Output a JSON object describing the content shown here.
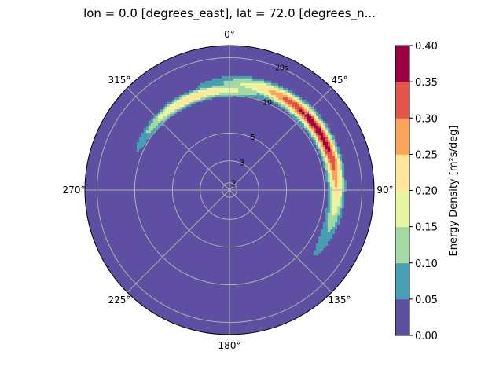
{
  "chart_data": {
    "type": "polar_filled_contour",
    "title": "lon = 0.0 [degrees_east], lat = 72.0 [degrees_n...",
    "angular_axis": {
      "zero_location": "top",
      "direction": "clockwise",
      "tick_labels": [
        {
          "deg": 0,
          "label": "0°"
        },
        {
          "deg": 45,
          "label": "45°"
        },
        {
          "deg": 90,
          "label": "90°"
        },
        {
          "deg": 135,
          "label": "135°"
        },
        {
          "deg": 180,
          "label": "180°"
        },
        {
          "deg": 225,
          "label": "225°"
        },
        {
          "deg": 270,
          "label": "270°"
        },
        {
          "deg": 315,
          "label": "315°"
        }
      ]
    },
    "radial_axis": {
      "scale": "log",
      "range": [
        1.75,
        25
      ],
      "ticks": [
        {
          "value": 2,
          "label": "2"
        },
        {
          "value": 3,
          "label": "3"
        },
        {
          "value": 5,
          "label": "5"
        },
        {
          "value": 10,
          "label": "10"
        },
        {
          "value": 20,
          "label": "20s"
        }
      ],
      "label_angle_deg": 22.5
    },
    "grid": true,
    "levels": [
      0.0,
      0.05,
      0.1,
      0.15,
      0.2,
      0.25,
      0.3,
      0.35,
      0.4
    ],
    "level_colors": [
      "#5e4fa2",
      "#479fb3",
      "#a2d9a4",
      "#e9f6a1",
      "#fee899",
      "#fca55d",
      "#e35549",
      "#9e0142"
    ],
    "energy_blob": {
      "peak_direction_deg": 55,
      "peak_period_s": 12.5,
      "peak_value": 0.38,
      "direction_spread_deg": 36,
      "period_spread_log": 0.095,
      "tail_direction_deg": -20,
      "tail_period_s": 11,
      "tail_value": 0.24,
      "tail_direction_spread_deg": 27,
      "tail_period_spread_log": 0.07
    },
    "colorbar": {
      "label": "Energy Density [m²s/deg]",
      "tick_labels": [
        "0.00",
        "0.05",
        "0.10",
        "0.15",
        "0.20",
        "0.25",
        "0.30",
        "0.35",
        "0.40"
      ],
      "placement": "right"
    }
  }
}
